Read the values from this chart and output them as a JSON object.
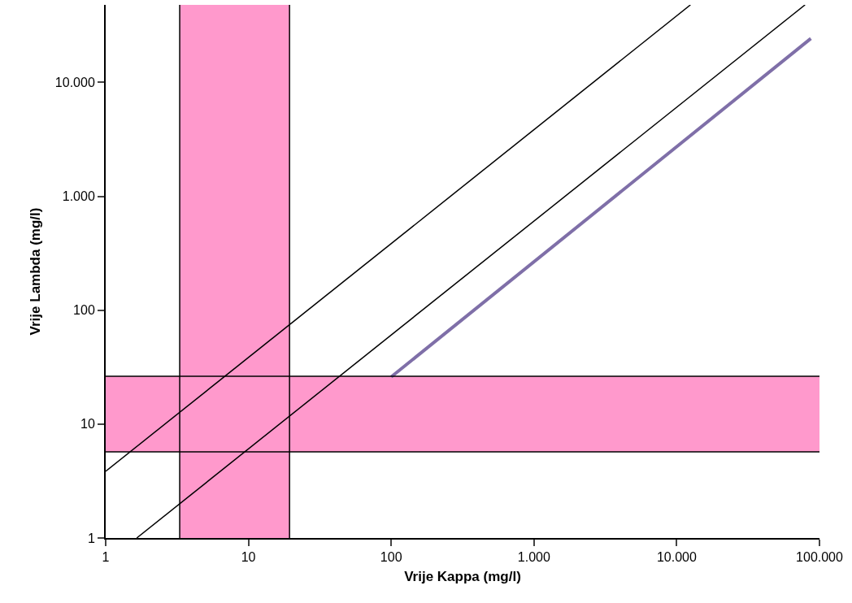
{
  "chart_data": {
    "type": "line",
    "xlabel": "Vrije Kappa (mg/l)",
    "ylabel": "Vrije Lambda (mg/l)",
    "log": "xy",
    "grid": false,
    "marker": "none",
    "xlim": [
      1,
      100000
    ],
    "ylim": [
      1,
      48000
    ],
    "xticks": [
      1,
      10,
      100,
      {
        "value": 1000,
        "label": "1.000"
      },
      {
        "value": 10000,
        "label": "10.000"
      },
      {
        "value": 100000,
        "label": "100.000"
      }
    ],
    "yticks": [
      1,
      10,
      100,
      {
        "value": 1000,
        "label": "1.000"
      },
      {
        "value": 10000,
        "label": "10.000"
      }
    ],
    "series": [
      {
        "color": "#000000",
        "x": [
          1,
          12480
        ],
        "values": [
          3.85,
          48000
        ]
      },
      {
        "color": "#000000",
        "x": [
          1.65,
          79200
        ],
        "values": [
          1,
          48000
        ]
      },
      {
        "color": "#7f6fa8",
        "x": [
          100,
          87000
        ],
        "values": [
          26,
          24300
        ]
      }
    ],
    "bands": [
      {
        "axis": "x",
        "from": 3.3,
        "to": 19.4,
        "color": "#ff99cc"
      },
      {
        "axis": "y",
        "from": 5.71,
        "to": 26.3,
        "color": "#ff99cc"
      }
    ],
    "ref_lines": [
      {
        "axis": "x",
        "value": 3.3,
        "color": "#000000"
      },
      {
        "axis": "x",
        "value": 19.4,
        "color": "#000000"
      },
      {
        "axis": "y",
        "value": 5.71,
        "color": "#000000"
      },
      {
        "axis": "y",
        "value": 26.3,
        "color": "#000000"
      }
    ]
  }
}
